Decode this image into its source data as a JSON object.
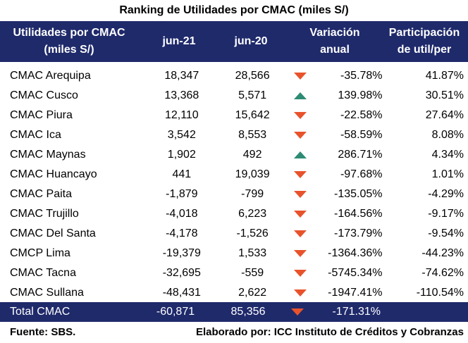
{
  "title": "Ranking de Utilidades por CMAC (miles S/)",
  "headers": {
    "name_line1": "Utilidades por CMAC",
    "name_line2": "(miles S/)",
    "jun21": "jun-21",
    "jun20": "jun-20",
    "var_line1": "Variación",
    "var_line2": "anual",
    "part_line1": "Participación",
    "part_line2": "de util/per"
  },
  "rows": [
    {
      "name": "CMAC Arequipa",
      "jun21": "18,347",
      "jun20": "28,566",
      "trend": "down",
      "var": "-35.78%",
      "part": "41.87%"
    },
    {
      "name": "CMAC Cusco",
      "jun21": "13,368",
      "jun20": "5,571",
      "trend": "up",
      "var": "139.98%",
      "part": "30.51%"
    },
    {
      "name": "CMAC Piura",
      "jun21": "12,110",
      "jun20": "15,642",
      "trend": "down",
      "var": "-22.58%",
      "part": "27.64%"
    },
    {
      "name": "CMAC Ica",
      "jun21": "3,542",
      "jun20": "8,553",
      "trend": "down",
      "var": "-58.59%",
      "part": "8.08%"
    },
    {
      "name": "CMAC Maynas",
      "jun21": "1,902",
      "jun20": "492",
      "trend": "up",
      "var": "286.71%",
      "part": "4.34%"
    },
    {
      "name": "CMAC Huancayo",
      "jun21": "441",
      "jun20": "19,039",
      "trend": "down",
      "var": "-97.68%",
      "part": "1.01%"
    },
    {
      "name": "CMAC Paita",
      "jun21": "-1,879",
      "jun20": "-799",
      "trend": "down",
      "var": "-135.05%",
      "part": "-4.29%"
    },
    {
      "name": "CMAC Trujillo",
      "jun21": "-4,018",
      "jun20": "6,223",
      "trend": "down",
      "var": "-164.56%",
      "part": "-9.17%"
    },
    {
      "name": "CMAC Del Santa",
      "jun21": "-4,178",
      "jun20": "-1,526",
      "trend": "down",
      "var": "-173.79%",
      "part": "-9.54%"
    },
    {
      "name": "CMCP Lima",
      "jun21": "-19,379",
      "jun20": "1,533",
      "trend": "down",
      "var": "-1364.36%",
      "part": "-44.23%"
    },
    {
      "name": "CMAC Tacna",
      "jun21": "-32,695",
      "jun20": "-559",
      "trend": "down",
      "var": "-5745.34%",
      "part": "-74.62%"
    },
    {
      "name": "CMAC Sullana",
      "jun21": "-48,431",
      "jun20": "2,622",
      "trend": "down",
      "var": "-1947.41%",
      "part": "-110.54%"
    }
  ],
  "total": {
    "name": "Total CMAC",
    "jun21": "-60,871",
    "jun20": "85,356",
    "trend": "down",
    "var": "-171.31%"
  },
  "footer": {
    "source": "Fuente: SBS.",
    "credit": "Elaborado por: ICC Instituto de Créditos y Cobranzas"
  },
  "colors": {
    "header_bg": "#1f2a6b",
    "down": "#e8532c",
    "up": "#2e8b74"
  }
}
